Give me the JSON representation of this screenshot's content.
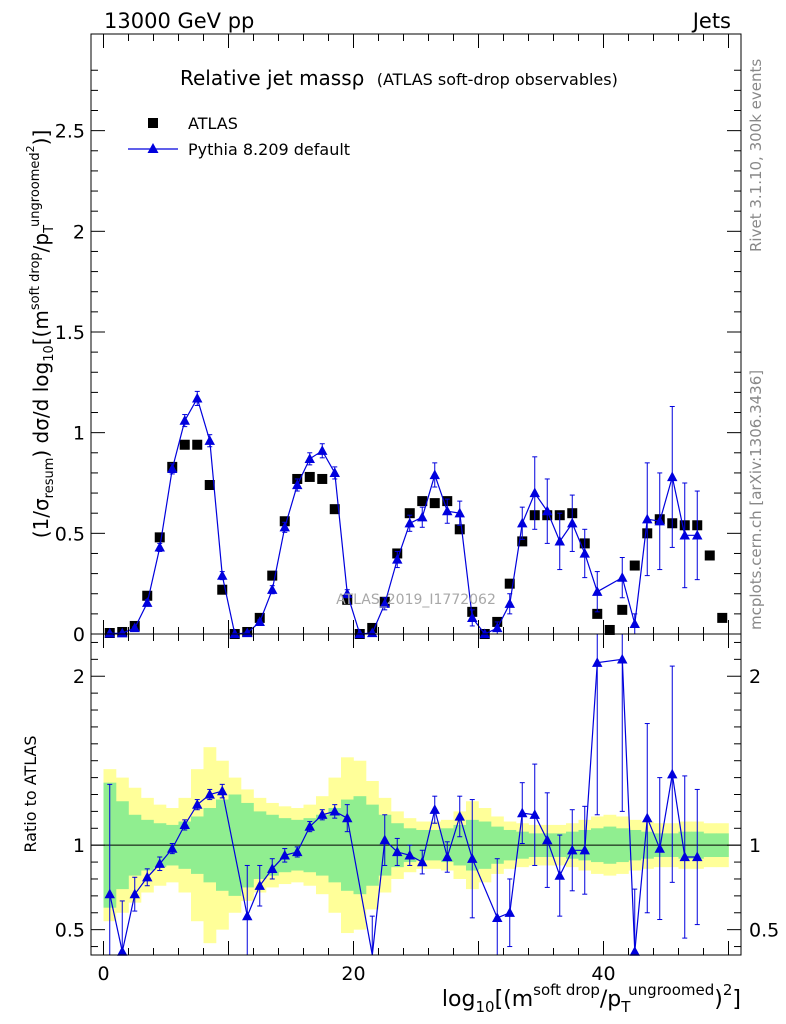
{
  "header": {
    "left": "13000 GeV pp",
    "right": "Jets"
  },
  "side_labels": {
    "rivet": "Rivet 3.1.10,  300k events",
    "mcplots": "mcplots.cern.ch [arXiv:1306.3436]"
  },
  "watermark": "ATLAS_2019_I1772062",
  "colors": {
    "data": "#000000",
    "mc": "#0000dd",
    "band_inner": "#90ee90",
    "band_outer": "#ffff99"
  },
  "chart_data": [
    {
      "type": "scatter",
      "title": "Relative jet massρ",
      "subtitle": "(ATLAS soft-drop observables)",
      "ylabel": "(1/σresum) dσ/d log10[(m^soft drop/pT^ungroomed)^2]",
      "ylabel_parts": {
        "a": "(1/σ",
        "sub1": "resum",
        "b": ") dσ/d log",
        "sub2": "10",
        "c": "[(m",
        "sup1": "soft drop",
        "d": "/p",
        "sub3": "T",
        "sup2": "ungroomed",
        "sup3": "2",
        "e": ")]"
      },
      "xlim": [
        -1,
        51
      ],
      "ylim": [
        0,
        2.98
      ],
      "yticks": [
        {
          "v": 0,
          "label": "0"
        },
        {
          "v": 0.5,
          "label": "0.5"
        },
        {
          "v": 1,
          "label": "1"
        },
        {
          "v": 1.5,
          "label": "1.5"
        },
        {
          "v": 2,
          "label": "2"
        },
        {
          "v": 2.5,
          "label": "2.5"
        }
      ],
      "legend": {
        "position": "top-left",
        "data_label": "ATLAS",
        "mc_label": "Pythia 8.209 default"
      },
      "data_x": [
        0.5,
        1.5,
        2.5,
        3.5,
        4.5,
        5.5,
        6.5,
        7.5,
        8.5,
        9.5,
        10.5,
        11.5,
        12.5,
        13.5,
        14.5,
        15.5,
        16.5,
        17.5,
        18.5,
        19.5,
        20.5,
        21.5,
        22.5,
        23.5,
        24.5,
        25.5,
        26.5,
        27.5,
        28.5,
        29.5,
        30.5,
        31.5,
        32.5,
        33.5,
        34.5,
        35.5,
        36.5,
        37.5,
        38.5,
        39.5,
        40.5,
        41.5,
        42.5,
        43.5,
        44.5,
        45.5,
        46.5,
        47.5,
        48.5,
        49.5
      ],
      "data_y": [
        0.005,
        0.01,
        0.04,
        0.19,
        0.48,
        0.83,
        0.94,
        0.94,
        0.74,
        0.22,
        0.0,
        0.01,
        0.08,
        0.29,
        0.56,
        0.77,
        0.78,
        0.77,
        0.62,
        0.17,
        0.0,
        0.03,
        0.16,
        0.4,
        0.6,
        0.66,
        0.65,
        0.66,
        0.52,
        0.11,
        0.0,
        0.06,
        0.25,
        0.46,
        0.59,
        0.59,
        0.59,
        0.6,
        0.45,
        0.1,
        0.02,
        0.12,
        0.34,
        0.5,
        0.57,
        0.55,
        0.54,
        0.54,
        0.39,
        0.08
      ],
      "mc": [
        {
          "x": 0.5,
          "y": 0.003,
          "e": 0.003
        },
        {
          "x": 1.5,
          "y": 0.004,
          "e": 0.004
        },
        {
          "x": 2.5,
          "y": 0.03,
          "e": 0.006
        },
        {
          "x": 3.5,
          "y": 0.155,
          "e": 0.015
        },
        {
          "x": 4.5,
          "y": 0.43,
          "e": 0.02
        },
        {
          "x": 5.5,
          "y": 0.82,
          "e": 0.025
        },
        {
          "x": 6.5,
          "y": 1.06,
          "e": 0.03
        },
        {
          "x": 7.5,
          "y": 1.17,
          "e": 0.035
        },
        {
          "x": 8.5,
          "y": 0.96,
          "e": 0.03
        },
        {
          "x": 9.5,
          "y": 0.29,
          "e": 0.02
        },
        {
          "x": 10.5,
          "y": 0.0,
          "e": 0.0
        },
        {
          "x": 11.5,
          "y": 0.005,
          "e": 0.005
        },
        {
          "x": 12.5,
          "y": 0.06,
          "e": 0.01
        },
        {
          "x": 13.5,
          "y": 0.22,
          "e": 0.02
        },
        {
          "x": 14.5,
          "y": 0.53,
          "e": 0.025
        },
        {
          "x": 15.5,
          "y": 0.74,
          "e": 0.03
        },
        {
          "x": 16.5,
          "y": 0.87,
          "e": 0.03
        },
        {
          "x": 17.5,
          "y": 0.91,
          "e": 0.035
        },
        {
          "x": 18.5,
          "y": 0.8,
          "e": 0.03
        },
        {
          "x": 19.5,
          "y": 0.2,
          "e": 0.02
        },
        {
          "x": 20.5,
          "y": 0.0,
          "e": 0.0
        },
        {
          "x": 21.5,
          "y": 0.005,
          "e": 0.005
        },
        {
          "x": 22.5,
          "y": 0.15,
          "e": 0.03
        },
        {
          "x": 23.5,
          "y": 0.37,
          "e": 0.04
        },
        {
          "x": 24.5,
          "y": 0.55,
          "e": 0.04
        },
        {
          "x": 25.5,
          "y": 0.58,
          "e": 0.05
        },
        {
          "x": 26.5,
          "y": 0.79,
          "e": 0.06
        },
        {
          "x": 27.5,
          "y": 0.61,
          "e": 0.06
        },
        {
          "x": 28.5,
          "y": 0.6,
          "e": 0.06
        },
        {
          "x": 29.5,
          "y": 0.08,
          "e": 0.04
        },
        {
          "x": 30.5,
          "y": 0.0,
          "e": 0.0
        },
        {
          "x": 31.5,
          "y": 0.03,
          "e": 0.03
        },
        {
          "x": 32.5,
          "y": 0.15,
          "e": 0.05
        },
        {
          "x": 33.5,
          "y": 0.55,
          "e": 0.08
        },
        {
          "x": 34.5,
          "y": 0.7,
          "e": 0.18
        },
        {
          "x": 35.5,
          "y": 0.61,
          "e": 0.16
        },
        {
          "x": 36.5,
          "y": 0.46,
          "e": 0.14
        },
        {
          "x": 37.5,
          "y": 0.55,
          "e": 0.14
        },
        {
          "x": 38.5,
          "y": 0.4,
          "e": 0.12
        },
        {
          "x": 39.5,
          "y": 0.21,
          "e": 0.1
        },
        {
          "x": 41.5,
          "y": 0.28,
          "e": 0.1
        },
        {
          "x": 42.5,
          "y": 0.05,
          "e": 0.05
        },
        {
          "x": 43.5,
          "y": 0.57,
          "e": 0.28
        },
        {
          "x": 44.5,
          "y": 0.56,
          "e": 0.24
        },
        {
          "x": 45.5,
          "y": 0.78,
          "e": 0.35
        },
        {
          "x": 46.5,
          "y": 0.49,
          "e": 0.26
        },
        {
          "x": 47.5,
          "y": 0.49,
          "e": 0.22
        }
      ],
      "annotations": [
        "ATLAS_2019_I1772062"
      ]
    },
    {
      "type": "scatter",
      "ylabel": "Ratio to ATLAS",
      "xlabel": "log10[(m^soft drop/pT^ungroomed)^2]",
      "xlabel_parts": {
        "a": "log",
        "sub1": "10",
        "b": "[(m",
        "sup1": "soft drop",
        "c": "/p",
        "sub2": "T",
        "sup2": "ungroomed",
        "d": ")",
        "sup3": "2",
        "e": "]"
      },
      "xlim": [
        -1,
        51
      ],
      "ylim": [
        0.35,
        2.25
      ],
      "xticks": [
        {
          "v": 0,
          "label": "0"
        },
        {
          "v": 20,
          "label": "20"
        },
        {
          "v": 40,
          "label": "40"
        }
      ],
      "yticks": [
        {
          "v": 0.5,
          "label": "0.5"
        },
        {
          "v": 1,
          "label": "1"
        },
        {
          "v": 2,
          "label": "2"
        }
      ],
      "reference_line": 1,
      "band_inner": [
        0.37,
        0.26,
        0.18,
        0.15,
        0.13,
        0.12,
        0.14,
        0.17,
        0.22,
        0.27,
        0.3,
        0.25,
        0.2,
        0.18,
        0.16,
        0.15,
        0.16,
        0.18,
        0.22,
        0.27,
        0.29,
        0.24,
        0.18,
        0.13,
        0.1,
        0.09,
        0.09,
        0.1,
        0.12,
        0.15,
        0.14,
        0.11,
        0.09,
        0.08,
        0.07,
        0.07,
        0.07,
        0.08,
        0.09,
        0.1,
        0.11,
        0.1,
        0.09,
        0.08,
        0.07,
        0.07,
        0.08,
        0.08,
        0.07,
        0.07
      ],
      "band_outer": [
        0.45,
        0.4,
        0.34,
        0.28,
        0.24,
        0.22,
        0.28,
        0.45,
        0.58,
        0.5,
        0.4,
        0.33,
        0.28,
        0.25,
        0.23,
        0.22,
        0.24,
        0.29,
        0.4,
        0.52,
        0.5,
        0.38,
        0.28,
        0.2,
        0.16,
        0.14,
        0.14,
        0.15,
        0.2,
        0.26,
        0.22,
        0.17,
        0.14,
        0.13,
        0.12,
        0.12,
        0.12,
        0.13,
        0.15,
        0.17,
        0.18,
        0.17,
        0.15,
        0.14,
        0.13,
        0.13,
        0.14,
        0.14,
        0.13,
        0.13
      ],
      "mc": [
        {
          "x": 0.5,
          "y": 0.71,
          "e": 0.65
        },
        {
          "x": 1.5,
          "y": 0.37,
          "e": 0.3
        },
        {
          "x": 2.5,
          "y": 0.71,
          "e": 0.1
        },
        {
          "x": 3.5,
          "y": 0.81,
          "e": 0.05
        },
        {
          "x": 4.5,
          "y": 0.89,
          "e": 0.04
        },
        {
          "x": 5.5,
          "y": 0.98,
          "e": 0.03
        },
        {
          "x": 6.5,
          "y": 1.12,
          "e": 0.03
        },
        {
          "x": 7.5,
          "y": 1.24,
          "e": 0.03
        },
        {
          "x": 8.5,
          "y": 1.3,
          "e": 0.03
        },
        {
          "x": 9.5,
          "y": 1.32,
          "e": 0.04
        },
        {
          "x": 11.5,
          "y": 0.58,
          "e": 0.3
        },
        {
          "x": 12.5,
          "y": 0.76,
          "e": 0.12
        },
        {
          "x": 13.5,
          "y": 0.86,
          "e": 0.06
        },
        {
          "x": 14.5,
          "y": 0.94,
          "e": 0.04
        },
        {
          "x": 15.5,
          "y": 0.96,
          "e": 0.03
        },
        {
          "x": 16.5,
          "y": 1.11,
          "e": 0.03
        },
        {
          "x": 17.5,
          "y": 1.18,
          "e": 0.03
        },
        {
          "x": 18.5,
          "y": 1.2,
          "e": 0.04
        },
        {
          "x": 19.5,
          "y": 1.16,
          "e": 0.08
        },
        {
          "x": 21.5,
          "y": 0.33,
          "e": 0.25
        },
        {
          "x": 22.5,
          "y": 1.03,
          "e": 0.15
        },
        {
          "x": 23.5,
          "y": 0.96,
          "e": 0.08
        },
        {
          "x": 24.5,
          "y": 0.94,
          "e": 0.06
        },
        {
          "x": 25.5,
          "y": 0.9,
          "e": 0.07
        },
        {
          "x": 26.5,
          "y": 1.21,
          "e": 0.08
        },
        {
          "x": 27.5,
          "y": 0.93,
          "e": 0.09
        },
        {
          "x": 28.5,
          "y": 1.17,
          "e": 0.12
        },
        {
          "x": 29.5,
          "y": 0.92,
          "e": 0.35
        },
        {
          "x": 31.5,
          "y": 0.57,
          "e": 0.35
        },
        {
          "x": 32.5,
          "y": 0.6,
          "e": 0.2
        },
        {
          "x": 33.5,
          "y": 1.19,
          "e": 0.18
        },
        {
          "x": 34.5,
          "y": 1.18,
          "e": 0.3
        },
        {
          "x": 35.5,
          "y": 1.03,
          "e": 0.28
        },
        {
          "x": 36.5,
          "y": 0.82,
          "e": 0.24
        },
        {
          "x": 37.5,
          "y": 0.97,
          "e": 0.24
        },
        {
          "x": 38.5,
          "y": 0.97,
          "e": 0.26
        },
        {
          "x": 39.5,
          "y": 2.08,
          "e": 0.9
        },
        {
          "x": 41.5,
          "y": 2.1,
          "e": 0.9
        },
        {
          "x": 42.5,
          "y": 0.37,
          "e": 0.37
        },
        {
          "x": 43.5,
          "y": 1.16,
          "e": 0.56
        },
        {
          "x": 44.5,
          "y": 0.98,
          "e": 0.42
        },
        {
          "x": 45.5,
          "y": 1.42,
          "e": 0.64
        },
        {
          "x": 46.5,
          "y": 0.93,
          "e": 0.48
        },
        {
          "x": 47.5,
          "y": 0.93,
          "e": 0.4
        }
      ]
    }
  ]
}
